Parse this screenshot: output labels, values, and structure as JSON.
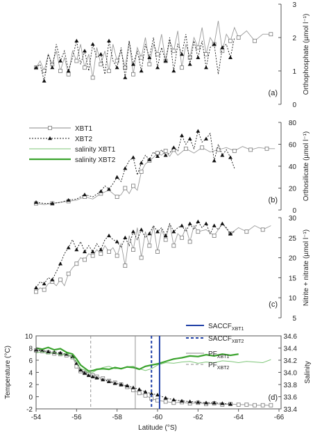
{
  "figure": {
    "xaxis": {
      "label": "Latitude (°S)",
      "min": -54,
      "max": -66,
      "ticks": [
        -54,
        -56,
        -58,
        -60,
        -62,
        -64,
        -66
      ]
    },
    "legend": {
      "items": [
        {
          "label": "XBT1",
          "style": "square"
        },
        {
          "label": "XBT2",
          "style": "triangle"
        },
        {
          "label": "salinity XBT1",
          "style": "thin-green"
        },
        {
          "label": "salinity XBT2",
          "style": "thick-green"
        }
      ]
    }
  },
  "colors": {
    "xbt1": "#9a9a9a",
    "xbt2": "#111111",
    "salinity_xbt1": "#7cc576",
    "salinity_xbt2": "#3aa32d",
    "saccf": "#1f3fa6"
  },
  "chart_data": [
    {
      "panel": "a",
      "type": "line",
      "ylabel": "Orthophosphate (µmol l⁻¹)",
      "ylim": [
        0,
        3
      ],
      "yticks": [
        0,
        1,
        2,
        3
      ],
      "yaxis_side": "right",
      "series": [
        {
          "name": "XBT1",
          "x": [
            -54.0,
            -54.2,
            -54.4,
            -54.6,
            -54.8,
            -55.0,
            -55.2,
            -55.4,
            -55.6,
            -55.8,
            -56.0,
            -56.2,
            -56.4,
            -56.6,
            -56.8,
            -57.0,
            -57.2,
            -57.4,
            -57.6,
            -57.8,
            -58.0,
            -58.2,
            -58.4,
            -58.6,
            -58.8,
            -59.0,
            -59.2,
            -59.4,
            -59.6,
            -59.8,
            -60.0,
            -60.2,
            -60.4,
            -60.6,
            -60.8,
            -61.0,
            -61.2,
            -61.4,
            -61.6,
            -61.8,
            -62.0,
            -62.2,
            -62.4,
            -62.6,
            -62.8,
            -63.0,
            -63.2,
            -63.4,
            -63.6,
            -63.8,
            -64.0,
            -64.4,
            -64.8,
            -65.2,
            -65.6
          ],
          "y": [
            1.1,
            1.3,
            1.0,
            1.5,
            1.2,
            1.6,
            1.0,
            1.4,
            0.9,
            1.6,
            1.3,
            1.8,
            1.1,
            1.5,
            0.8,
            1.7,
            1.2,
            1.6,
            1.0,
            1.8,
            1.3,
            1.6,
            1.1,
            1.9,
            0.9,
            1.7,
            1.4,
            2.0,
            1.2,
            1.8,
            1.5,
            2.1,
            1.3,
            1.9,
            1.6,
            2.2,
            1.1,
            1.8,
            1.4,
            2.0,
            1.7,
            2.3,
            1.5,
            2.0,
            1.8,
            2.5,
            1.6,
            2.1,
            1.9,
            2.3,
            2.0,
            2.2,
            1.9,
            2.1,
            2.1
          ]
        },
        {
          "name": "XBT2",
          "x": [
            -54.0,
            -54.2,
            -54.4,
            -54.6,
            -54.8,
            -55.0,
            -55.2,
            -55.4,
            -55.6,
            -55.8,
            -56.0,
            -56.2,
            -56.4,
            -56.6,
            -56.8,
            -57.0,
            -57.2,
            -57.4,
            -57.6,
            -57.8,
            -58.0,
            -58.2,
            -58.4,
            -58.6,
            -58.8,
            -59.0,
            -59.2,
            -59.4,
            -59.6,
            -59.8,
            -60.0,
            -60.2,
            -60.4,
            -60.6,
            -60.8,
            -61.0,
            -61.2,
            -61.4,
            -61.6,
            -61.8,
            -62.0,
            -62.2,
            -62.4,
            -62.6,
            -62.8,
            -63.0,
            -63.2,
            -63.4,
            -63.6,
            -63.8
          ],
          "y": [
            1.1,
            1.2,
            0.7,
            1.5,
            1.1,
            1.8,
            1.3,
            1.6,
            1.0,
            1.4,
            1.9,
            1.2,
            1.6,
            1.0,
            1.8,
            1.4,
            1.5,
            0.9,
            1.9,
            1.3,
            1.1,
            1.7,
            0.8,
            1.9,
            1.2,
            1.6,
            1.0,
            1.8,
            1.4,
            2.0,
            1.1,
            1.7,
            1.3,
            2.0,
            1.0,
            1.8,
            1.5,
            2.1,
            1.2,
            1.9,
            1.4,
            1.9,
            1.1,
            1.7,
            1.8,
            0.9,
            1.7,
            1.8,
            1.4,
            2.0
          ]
        }
      ]
    },
    {
      "panel": "b",
      "type": "line",
      "ylabel": "Orthosilicate (µmol l⁻¹)",
      "ylim": [
        0,
        80
      ],
      "yticks": [
        0,
        20,
        40,
        60,
        80
      ],
      "yaxis_side": "right",
      "series": [
        {
          "name": "XBT1",
          "x": [
            -54.0,
            -54.4,
            -54.8,
            -55.2,
            -55.6,
            -56.0,
            -56.4,
            -56.8,
            -57.2,
            -57.6,
            -58.0,
            -58.2,
            -58.4,
            -58.6,
            -58.8,
            -59.0,
            -59.2,
            -59.4,
            -59.6,
            -59.8,
            -60.0,
            -60.2,
            -60.4,
            -60.6,
            -60.8,
            -61.0,
            -61.4,
            -61.8,
            -62.2,
            -62.6,
            -63.0,
            -63.4,
            -63.8,
            -64.2,
            -64.6,
            -65.0,
            -65.4,
            -65.8
          ],
          "y": [
            6,
            5,
            6,
            7,
            8,
            9,
            12,
            10,
            15,
            18,
            12,
            14,
            20,
            15,
            22,
            18,
            35,
            42,
            45,
            48,
            52,
            50,
            54,
            49,
            55,
            50,
            56,
            52,
            57,
            53,
            55,
            57,
            54,
            58,
            55,
            57,
            56,
            56
          ]
        },
        {
          "name": "XBT2",
          "x": [
            -54.0,
            -54.4,
            -54.8,
            -55.2,
            -55.6,
            -56.0,
            -56.4,
            -56.8,
            -57.2,
            -57.4,
            -57.6,
            -57.8,
            -58.0,
            -58.2,
            -58.4,
            -58.6,
            -58.8,
            -59.0,
            -59.2,
            -59.4,
            -59.6,
            -59.8,
            -60.0,
            -60.2,
            -60.4,
            -60.6,
            -60.8,
            -61.0,
            -61.2,
            -61.4,
            -61.6,
            -61.8,
            -62.0,
            -62.2,
            -62.4,
            -62.6,
            -62.8,
            -63.0,
            -63.2,
            -63.4,
            -63.6,
            -63.8
          ],
          "y": [
            7,
            6,
            6,
            7,
            9,
            10,
            14,
            12,
            17,
            22,
            19,
            24,
            30,
            26,
            38,
            45,
            48,
            32,
            43,
            50,
            46,
            53,
            49,
            55,
            50,
            52,
            57,
            54,
            68,
            60,
            65,
            56,
            72,
            62,
            65,
            70,
            45,
            60,
            50,
            55,
            48,
            38
          ]
        }
      ]
    },
    {
      "panel": "c",
      "type": "line",
      "ylabel": "Nitrite + nitrate (µmol l⁻¹)",
      "ylim": [
        5,
        30
      ],
      "yticks": [
        5,
        10,
        15,
        20,
        25,
        30
      ],
      "yaxis_side": "right",
      "series": [
        {
          "name": "XBT1",
          "x": [
            -54.0,
            -54.2,
            -54.4,
            -54.6,
            -54.8,
            -55.0,
            -55.2,
            -55.4,
            -55.6,
            -55.8,
            -56.0,
            -56.2,
            -56.4,
            -56.6,
            -56.8,
            -57.0,
            -57.2,
            -57.4,
            -57.6,
            -57.8,
            -58.0,
            -58.2,
            -58.4,
            -58.6,
            -58.8,
            -59.0,
            -59.2,
            -59.4,
            -59.6,
            -59.8,
            -60.0,
            -60.2,
            -60.4,
            -60.6,
            -60.8,
            -61.0,
            -61.2,
            -61.4,
            -61.6,
            -61.8,
            -62.0,
            -62.4,
            -62.8,
            -63.2,
            -63.6,
            -64.0,
            -64.4,
            -64.8,
            -65.2,
            -65.6
          ],
          "y": [
            11.5,
            12.5,
            12.0,
            13.5,
            14.0,
            13.0,
            14.5,
            13.0,
            16.0,
            17.5,
            18.5,
            20.0,
            19.5,
            21.0,
            20.5,
            22.0,
            21.0,
            23.0,
            21.5,
            22.5,
            20.5,
            23.5,
            18.0,
            25.5,
            22.0,
            27.5,
            20.0,
            26.5,
            23.0,
            28.0,
            21.5,
            27.0,
            24.5,
            28.5,
            23.0,
            26.0,
            25.0,
            27.5,
            24.0,
            28.0,
            26.5,
            27.0,
            25.5,
            28.5,
            26.0,
            27.5,
            26.5,
            28.0,
            27.0,
            28.0
          ]
        },
        {
          "name": "XBT2",
          "x": [
            -54.0,
            -54.2,
            -54.4,
            -54.6,
            -54.8,
            -55.0,
            -55.2,
            -55.4,
            -55.6,
            -55.8,
            -56.0,
            -56.2,
            -56.4,
            -56.6,
            -56.8,
            -57.0,
            -57.2,
            -57.4,
            -57.6,
            -57.8,
            -58.0,
            -58.2,
            -58.4,
            -58.6,
            -58.8,
            -59.0,
            -59.2,
            -59.4,
            -59.6,
            -59.8,
            -60.0,
            -60.2,
            -60.4,
            -60.6,
            -60.8,
            -61.0,
            -61.2,
            -61.4,
            -61.6,
            -61.8,
            -62.0,
            -62.2,
            -62.4,
            -62.6,
            -62.8,
            -63.0,
            -63.2,
            -63.4,
            -63.6,
            -63.8
          ],
          "y": [
            12.5,
            14.0,
            13.5,
            15.0,
            14.5,
            16.5,
            18.5,
            21.0,
            22.5,
            24.5,
            22.0,
            24.0,
            21.5,
            23.0,
            21.5,
            23.5,
            22.0,
            24.5,
            25.5,
            24.5,
            24.0,
            22.5,
            25.0,
            23.0,
            26.5,
            24.5,
            27.0,
            25.0,
            26.0,
            28.0,
            26.5,
            27.5,
            25.5,
            28.5,
            26.5,
            27.5,
            28.0,
            26.5,
            28.5,
            27.0,
            29.0,
            27.5,
            28.5,
            26.0,
            28.0,
            27.0,
            28.5,
            27.5,
            26.0,
            26.5
          ]
        }
      ]
    },
    {
      "panel": "d",
      "type": "line",
      "ylabel": "Temperature (°C)",
      "ylim": [
        -2,
        10
      ],
      "yticks": [
        -2,
        0,
        2,
        4,
        6,
        8,
        10
      ],
      "y2label": "Salinity",
      "y2lim": [
        33.4,
        34.6
      ],
      "y2ticks": [
        33.4,
        33.6,
        33.8,
        34.0,
        34.2,
        34.4,
        34.6
      ],
      "series": [
        {
          "name": "XBT1",
          "axis": "temperature",
          "x": [
            -54.0,
            -54.3,
            -54.6,
            -54.9,
            -55.2,
            -55.5,
            -55.8,
            -56.0,
            -56.2,
            -56.4,
            -56.6,
            -56.8,
            -57.0,
            -57.3,
            -57.6,
            -57.9,
            -58.2,
            -58.5,
            -58.8,
            -59.1,
            -59.4,
            -59.7,
            -60.0,
            -60.4,
            -60.8,
            -61.2,
            -61.6,
            -62.0,
            -62.4,
            -62.8,
            -63.2,
            -63.6,
            -64.0,
            -64.4,
            -64.8,
            -65.2,
            -65.6
          ],
          "y": [
            7.6,
            7.5,
            7.3,
            7.1,
            7.0,
            6.8,
            6.5,
            5.0,
            4.2,
            3.9,
            3.7,
            3.5,
            3.3,
            3.0,
            2.6,
            2.3,
            2.0,
            1.6,
            1.1,
            0.6,
            0.2,
            -0.3,
            -0.6,
            -0.8,
            -1.0,
            -0.9,
            -1.1,
            -1.0,
            -1.2,
            -1.1,
            -1.3,
            -1.2,
            -1.3,
            -1.3,
            -1.4,
            -1.4,
            -1.4
          ]
        },
        {
          "name": "XBT2",
          "axis": "temperature",
          "x": [
            -54.0,
            -54.3,
            -54.6,
            -54.9,
            -55.2,
            -55.5,
            -55.8,
            -56.0,
            -56.2,
            -56.4,
            -56.6,
            -56.8,
            -57.0,
            -57.3,
            -57.6,
            -57.9,
            -58.2,
            -58.5,
            -58.8,
            -59.1,
            -59.4,
            -59.7,
            -60.0,
            -60.4,
            -60.8,
            -61.2,
            -61.6,
            -62.0,
            -62.4,
            -62.8,
            -63.2,
            -63.6
          ],
          "y": [
            7.7,
            7.6,
            7.4,
            7.3,
            7.2,
            7.0,
            6.6,
            5.5,
            4.4,
            3.9,
            3.5,
            3.3,
            3.1,
            2.8,
            2.5,
            2.2,
            2.0,
            1.8,
            1.5,
            1.2,
            0.8,
            0.5,
            0.3,
            -0.2,
            -0.5,
            -0.7,
            -0.8,
            -0.9,
            -1.0,
            -1.0,
            -1.1,
            -1.2
          ]
        },
        {
          "name": "salinity XBT1",
          "axis": "salinity",
          "x": [
            -54.0,
            -54.3,
            -54.6,
            -54.9,
            -55.2,
            -55.5,
            -55.8,
            -56.0,
            -56.2,
            -56.4,
            -56.6,
            -56.8,
            -57.0,
            -57.3,
            -57.6,
            -57.9,
            -58.2,
            -58.5,
            -58.8,
            -59.1,
            -59.4,
            -59.7,
            -60.0,
            -60.4,
            -60.8,
            -61.2,
            -61.6,
            -62.0,
            -62.4,
            -62.8,
            -63.2,
            -63.6,
            -64.0,
            -64.4,
            -64.8,
            -65.2,
            -65.6
          ],
          "y": [
            34.32,
            34.34,
            34.3,
            34.33,
            34.28,
            34.31,
            34.25,
            34.18,
            34.06,
            34.04,
            33.99,
            34.0,
            34.04,
            34.08,
            34.1,
            34.06,
            34.07,
            34.09,
            34.1,
            34.06,
            34.03,
            34.06,
            34.12,
            34.16,
            34.15,
            34.17,
            34.18,
            34.15,
            34.17,
            34.16,
            34.19,
            34.18,
            34.16,
            34.18,
            34.17,
            34.16,
            34.21
          ]
        },
        {
          "name": "salinity XBT2",
          "axis": "salinity",
          "x": [
            -54.0,
            -54.3,
            -54.6,
            -54.9,
            -55.2,
            -55.5,
            -55.8,
            -56.0,
            -56.2,
            -56.4,
            -56.6,
            -56.8,
            -57.0,
            -57.3,
            -57.6,
            -57.9,
            -58.2,
            -58.5,
            -58.8,
            -59.1,
            -59.4,
            -59.7,
            -60.0,
            -60.4,
            -60.8,
            -61.2,
            -61.6,
            -62.0,
            -62.4,
            -62.8,
            -63.2,
            -63.6,
            -64.0
          ],
          "y": [
            34.4,
            34.38,
            34.41,
            34.37,
            34.39,
            34.33,
            34.3,
            34.22,
            34.12,
            34.07,
            34.02,
            34.03,
            34.05,
            34.06,
            34.05,
            34.08,
            34.06,
            34.09,
            34.08,
            34.05,
            34.1,
            34.12,
            34.14,
            34.18,
            34.22,
            34.24,
            34.27,
            34.26,
            34.29,
            34.27,
            34.3,
            34.28,
            34.3
          ]
        }
      ],
      "annotations": [
        {
          "label": "SACCF",
          "sub": "XBT1",
          "x": -60.1,
          "style": "solid-blue"
        },
        {
          "label": "SACCF",
          "sub": "XBT2",
          "x": -59.7,
          "style": "dashed-blue"
        },
        {
          "label": "PF",
          "sub": "XBT1",
          "x": -58.9,
          "style": "solid-gray"
        },
        {
          "label": "PF",
          "sub": "XBT2",
          "x": -56.7,
          "style": "dashed-gray"
        }
      ]
    }
  ]
}
